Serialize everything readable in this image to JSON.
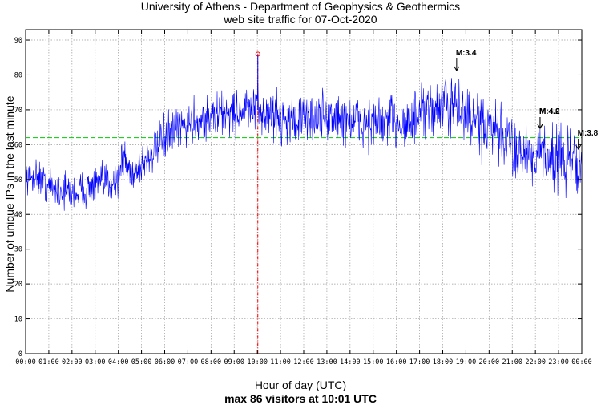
{
  "chart_data": {
    "type": "line",
    "title": "University of Athens - Department of Geophysics & Geothermics",
    "subtitle": "web site traffic for 07-Oct-2020",
    "xlabel": "Hour of day (UTC)",
    "footer": "max 86 visitors at 10:01 UTC",
    "ylabel": "Number of unique IPs in the last minute",
    "xlim": [
      0,
      24
    ],
    "ylim": [
      0,
      93
    ],
    "x_tick_labels": [
      "00:00",
      "01:00",
      "02:00",
      "03:00",
      "04:00",
      "05:00",
      "06:00",
      "07:00",
      "08:00",
      "09:00",
      "10:00",
      "11:00",
      "12:00",
      "13:00",
      "14:00",
      "15:00",
      "16:00",
      "17:00",
      "18:00",
      "19:00",
      "20:00",
      "21:00",
      "22:00",
      "23:00",
      "00:00"
    ],
    "y_ticks": [
      0,
      10,
      20,
      30,
      40,
      50,
      60,
      70,
      80,
      90
    ],
    "grid": true,
    "mean_line": {
      "value": 62,
      "color": "#00cc00",
      "style": "dashed"
    },
    "max_marker": {
      "x": 10.02,
      "y": 86,
      "color": "#ff0000"
    },
    "series_color": "#0000ff",
    "series": [
      {
        "x": [
          0,
          0.5,
          1,
          1.5,
          2,
          2.5,
          3,
          3.5,
          4,
          4.2,
          4.5,
          5,
          5.5,
          6,
          6.5,
          7,
          7.5,
          8,
          8.5,
          9,
          9.5,
          10,
          10.5,
          11,
          11.5,
          12,
          12.5,
          13,
          13.5,
          14,
          14.5,
          15,
          15.5,
          16,
          16.5,
          17,
          17.5,
          18,
          18.5,
          19,
          19.5,
          20,
          20.5,
          21,
          21.5,
          22,
          22.5,
          23,
          23.5,
          24
        ],
        "values": [
          50,
          51,
          48,
          47,
          46,
          47,
          48,
          49,
          50,
          57,
          52,
          54,
          58,
          62,
          64,
          66,
          67,
          68,
          69,
          69,
          70,
          70,
          69,
          68,
          67,
          67,
          68,
          68,
          67,
          67,
          66,
          66,
          66,
          67,
          66,
          68,
          70,
          72,
          71,
          69,
          66,
          64,
          62,
          60,
          58,
          58,
          57,
          56,
          55,
          54
        ]
      }
    ],
    "annotations": [
      {
        "x": 18.6,
        "label": "M:3.4"
      },
      {
        "x": 22.2,
        "label": "M:4.2"
      },
      {
        "x": 22.2,
        "label": "M:4.0"
      },
      {
        "x": 23.85,
        "label": "M:3.8"
      }
    ]
  }
}
